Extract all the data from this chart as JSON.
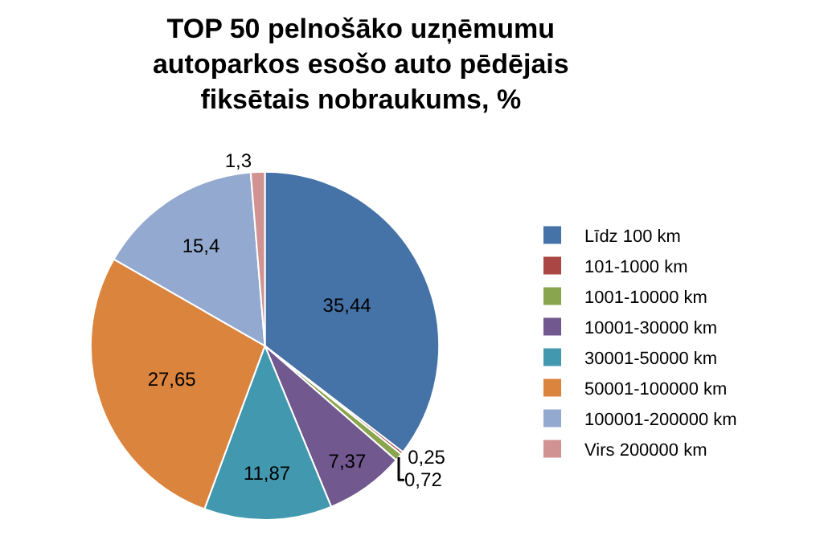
{
  "chart_data": {
    "type": "pie",
    "title": "TOP 50 pelnošāko uzņēmumu\nautoparkos esošo auto pēdējais\nfiksētais nobraukums, %",
    "categories": [
      "Līdz 100 km",
      "101-1000 km",
      "1001-10000 km",
      "10001-30000 km",
      "30001-50000 km",
      "50001-100000 km",
      "100001-200000 km",
      "Virs 200000 km"
    ],
    "values": [
      35.44,
      0.25,
      0.72,
      7.37,
      11.87,
      27.65,
      15.4,
      1.3
    ],
    "value_labels": [
      "35,44",
      "0,25",
      "0,72",
      "7,37",
      "11,87",
      "27,65",
      "15,4",
      "1,3"
    ],
    "colors": [
      "#4572a7",
      "#aa4643",
      "#89a54e",
      "#71588f",
      "#4198af",
      "#db843d",
      "#93a9cf",
      "#d19392"
    ],
    "legend": "right"
  }
}
